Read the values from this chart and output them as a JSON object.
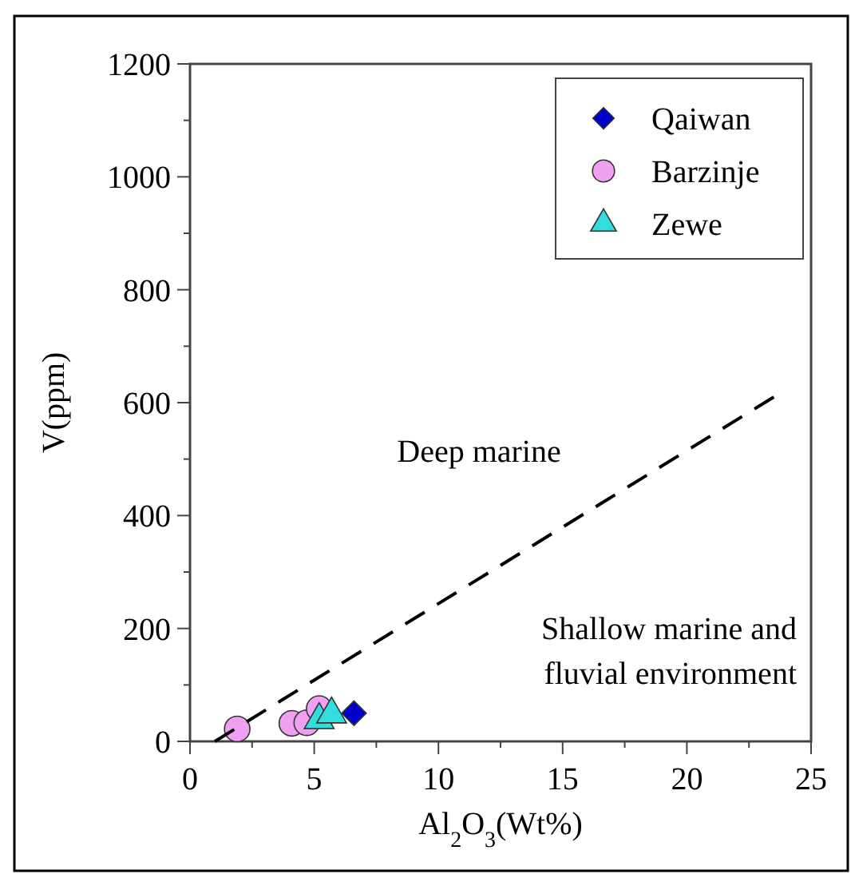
{
  "chart_data": {
    "type": "scatter",
    "xlabel": "Al$_{2}$O$_{3}$(Wt%)",
    "ylabel": "V(ppm)",
    "xlim": [
      0,
      25
    ],
    "ylim": [
      0,
      1200
    ],
    "xticks": [
      0,
      {
        "value": 2.5,
        "label": null
      },
      5,
      {
        "value": 7.5,
        "label": null
      },
      10,
      {
        "value": 12.5,
        "label": null
      },
      15,
      {
        "value": 17.5,
        "label": null
      },
      20,
      {
        "value": 22.5,
        "label": null
      },
      25
    ],
    "yticks": [
      0,
      {
        "value": 100,
        "label": null
      },
      200,
      {
        "value": 300,
        "label": null
      },
      400,
      {
        "value": 500,
        "label": null
      },
      600,
      {
        "value": 700,
        "label": null
      },
      800,
      {
        "value": 900,
        "label": null
      },
      1000,
      {
        "value": 1100,
        "label": null
      },
      1200
    ],
    "legend": "top right",
    "annotations": [
      "Deep marine",
      "Shallow marine and fluvial environment"
    ],
    "series": [
      {
        "name": "Qaiwan",
        "color": "#0000cc",
        "marker": "diamond",
        "x": [
          6.6
        ],
        "values": [
          50
        ]
      },
      {
        "name": "Barzinje",
        "color": "#f0a0f0",
        "marker": "circle",
        "x": [
          1.9,
          4.1,
          4.7,
          5.2
        ],
        "values": [
          22,
          32,
          33,
          58
        ]
      },
      {
        "name": "Zewe",
        "color": "#33dddd",
        "marker": "triangle",
        "x": [
          5.2,
          5.7
        ],
        "values": [
          38,
          48
        ]
      },
      {
        "type": "line",
        "color": "#000000",
        "marker": "none",
        "line_style": "dashed",
        "x": [
          1,
          23.5
        ],
        "values": [
          0,
          610
        ]
      }
    ]
  }
}
